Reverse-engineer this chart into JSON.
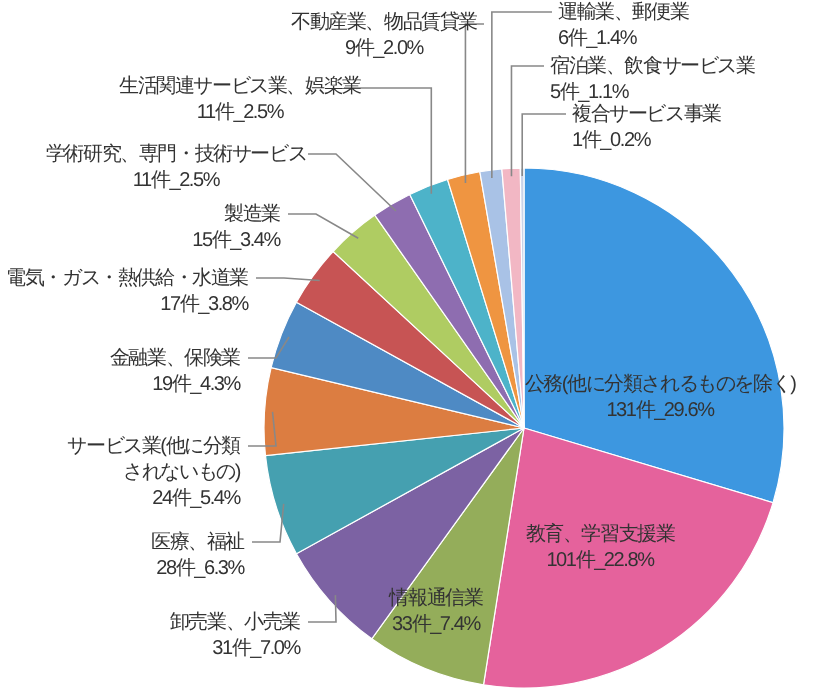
{
  "chart_data": {
    "type": "pie",
    "categories": [
      "公務(他に分類されるものを除く)",
      "教育、学習支援業",
      "情報通信業",
      "卸売業、小売業",
      "医療、福祉",
      "サービス業(他に分類されないもの)",
      "金融業、保険業",
      "電気・ガス・熱供給・水道業",
      "製造業",
      "学術研究、専門・技術サービス",
      "生活関連サービス業、娯楽業",
      "不動産業、物品賃貸業",
      "運輸業、郵便業",
      "宿泊業、飲食サービス業",
      "複合サービス事業"
    ],
    "values": [
      131,
      101,
      33,
      31,
      28,
      24,
      19,
      17,
      15,
      11,
      11,
      9,
      6,
      5,
      1
    ],
    "colors": [
      "#3d97e0",
      "#e5629c",
      "#94ad5a",
      "#7c62a3",
      "#45a0b0",
      "#dc7d41",
      "#4e8ac4",
      "#c75454",
      "#afcc62",
      "#8e6db0",
      "#4db3c9",
      "#ef9541",
      "#a9c2e6",
      "#f2b7c4",
      "#c9d3e8"
    ],
    "value_labels": [
      "131件_29.6%",
      "101件_22.8%",
      "33件_7.4%",
      "31件_7.0%",
      "28件_6.3%",
      "24件_5.4%",
      "19件_4.3%",
      "17件_3.8%",
      "15件_3.4%",
      "11件_2.5%",
      "11件_2.5%",
      "9件_2.0%",
      "6件_1.4%",
      "5件_1.1%",
      "1件_0.2%"
    ]
  }
}
